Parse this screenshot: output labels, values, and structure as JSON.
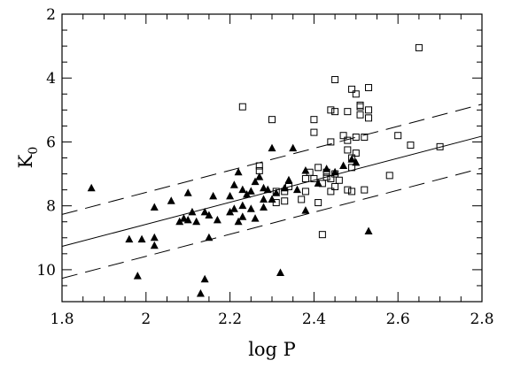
{
  "chart_data": {
    "type": "scatter",
    "xlabel": "log P",
    "ylabel_main": "K",
    "ylabel_sub": "0",
    "xlim": [
      1.8,
      2.8
    ],
    "ylim": [
      11,
      2
    ],
    "y_inverted": true,
    "x_ticks": [
      1.8,
      2.0,
      2.2,
      2.4,
      2.6,
      2.8
    ],
    "x_tick_labels": [
      "1.8",
      "2",
      "2.2",
      "2.4",
      "2.6",
      "2.8"
    ],
    "y_ticks": [
      2,
      4,
      6,
      8,
      10
    ],
    "y_tick_labels": [
      "2",
      "4",
      "6",
      "8",
      "10"
    ],
    "grid": false,
    "lines": [
      {
        "style": "solid",
        "x": [
          1.8,
          2.8
        ],
        "y": [
          9.27,
          5.82
        ]
      },
      {
        "style": "dashed",
        "x": [
          1.8,
          2.8
        ],
        "y": [
          8.27,
          4.82
        ]
      },
      {
        "style": "dashed",
        "x": [
          1.8,
          2.8
        ],
        "y": [
          10.27,
          6.82
        ]
      }
    ],
    "series": [
      {
        "marker": "filled-triangle",
        "points": [
          [
            1.87,
            7.45
          ],
          [
            1.96,
            9.05
          ],
          [
            1.98,
            10.2
          ],
          [
            1.99,
            9.05
          ],
          [
            2.02,
            8.05
          ],
          [
            2.02,
            9.0
          ],
          [
            2.02,
            9.25
          ],
          [
            2.06,
            7.85
          ],
          [
            2.08,
            8.5
          ],
          [
            2.09,
            8.4
          ],
          [
            2.1,
            7.6
          ],
          [
            2.1,
            8.45
          ],
          [
            2.11,
            8.2
          ],
          [
            2.12,
            8.5
          ],
          [
            2.13,
            10.75
          ],
          [
            2.14,
            8.2
          ],
          [
            2.14,
            10.3
          ],
          [
            2.15,
            9.0
          ],
          [
            2.15,
            8.3
          ],
          [
            2.16,
            7.7
          ],
          [
            2.17,
            8.45
          ],
          [
            2.2,
            8.2
          ],
          [
            2.2,
            7.7
          ],
          [
            2.21,
            8.1
          ],
          [
            2.21,
            7.35
          ],
          [
            2.22,
            6.95
          ],
          [
            2.22,
            8.5
          ],
          [
            2.23,
            8.0
          ],
          [
            2.23,
            7.5
          ],
          [
            2.23,
            8.35
          ],
          [
            2.24,
            7.65
          ],
          [
            2.25,
            8.1
          ],
          [
            2.25,
            7.55
          ],
          [
            2.26,
            7.25
          ],
          [
            2.26,
            8.4
          ],
          [
            2.27,
            7.1
          ],
          [
            2.28,
            8.05
          ],
          [
            2.28,
            7.45
          ],
          [
            2.28,
            7.8
          ],
          [
            2.29,
            7.5
          ],
          [
            2.3,
            7.8
          ],
          [
            2.3,
            6.2
          ],
          [
            2.31,
            7.6
          ],
          [
            2.32,
            10.1
          ],
          [
            2.33,
            7.45
          ],
          [
            2.34,
            7.2
          ],
          [
            2.35,
            6.2
          ],
          [
            2.36,
            7.5
          ],
          [
            2.38,
            8.15
          ],
          [
            2.38,
            6.9
          ],
          [
            2.41,
            7.3
          ],
          [
            2.43,
            6.85
          ],
          [
            2.45,
            6.95
          ],
          [
            2.47,
            6.75
          ],
          [
            2.49,
            6.55
          ],
          [
            2.5,
            6.65
          ],
          [
            2.53,
            8.8
          ]
        ]
      },
      {
        "marker": "open-square",
        "points": [
          [
            2.23,
            4.9
          ],
          [
            2.27,
            6.75
          ],
          [
            2.27,
            6.9
          ],
          [
            2.3,
            5.3
          ],
          [
            2.31,
            7.55
          ],
          [
            2.31,
            7.9
          ],
          [
            2.33,
            7.55
          ],
          [
            2.33,
            7.85
          ],
          [
            2.34,
            7.4
          ],
          [
            2.37,
            7.8
          ],
          [
            2.38,
            7.15
          ],
          [
            2.38,
            7.55
          ],
          [
            2.39,
            6.95
          ],
          [
            2.4,
            5.3
          ],
          [
            2.4,
            5.7
          ],
          [
            2.4,
            7.15
          ],
          [
            2.41,
            7.9
          ],
          [
            2.41,
            6.8
          ],
          [
            2.42,
            8.9
          ],
          [
            2.42,
            7.3
          ],
          [
            2.43,
            7.1
          ],
          [
            2.43,
            6.95
          ],
          [
            2.44,
            5.0
          ],
          [
            2.44,
            6.0
          ],
          [
            2.44,
            7.55
          ],
          [
            2.44,
            7.15
          ],
          [
            2.45,
            4.05
          ],
          [
            2.45,
            5.05
          ],
          [
            2.45,
            7.0
          ],
          [
            2.45,
            7.4
          ],
          [
            2.46,
            7.2
          ],
          [
            2.47,
            5.8
          ],
          [
            2.48,
            5.05
          ],
          [
            2.48,
            6.25
          ],
          [
            2.48,
            7.5
          ],
          [
            2.48,
            5.95
          ],
          [
            2.49,
            4.35
          ],
          [
            2.49,
            6.5
          ],
          [
            2.49,
            6.8
          ],
          [
            2.49,
            7.55
          ],
          [
            2.5,
            4.5
          ],
          [
            2.5,
            5.85
          ],
          [
            2.5,
            6.35
          ],
          [
            2.51,
            4.85
          ],
          [
            2.51,
            4.9
          ],
          [
            2.51,
            5.15
          ],
          [
            2.52,
            5.85
          ],
          [
            2.52,
            7.5
          ],
          [
            2.53,
            4.3
          ],
          [
            2.53,
            5.0
          ],
          [
            2.53,
            5.25
          ],
          [
            2.58,
            7.05
          ],
          [
            2.6,
            5.8
          ],
          [
            2.63,
            6.1
          ],
          [
            2.65,
            3.05
          ],
          [
            2.7,
            6.15
          ]
        ]
      }
    ]
  }
}
